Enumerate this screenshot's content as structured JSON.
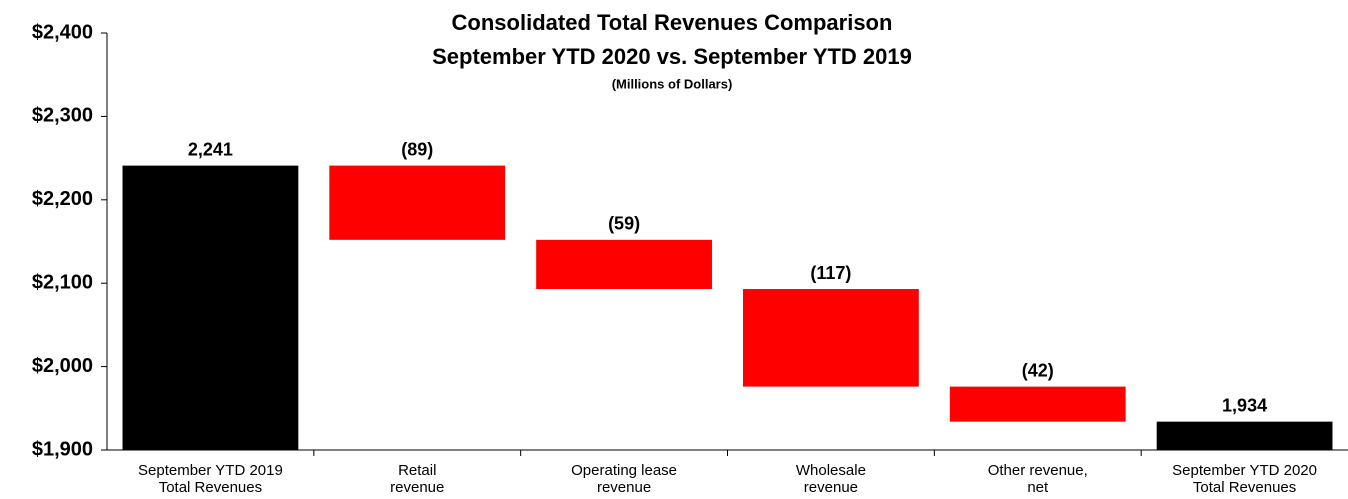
{
  "chart_data": {
    "type": "waterfall",
    "title": "Consolidated Total Revenues Comparison",
    "subtitle": "September YTD 2020 vs. September YTD 2019",
    "note": "(Millions of Dollars)",
    "categories": [
      "September YTD 2019\nTotal Revenues",
      "Retail\nrevenue",
      "Operating lease\nrevenue",
      "Wholesale\nrevenue",
      "Other revenue,\nnet",
      "September YTD 2020\nTotal Revenues"
    ],
    "values": [
      2241,
      -89,
      -59,
      -117,
      -42,
      1934
    ],
    "value_labels": [
      "2,241",
      "(89)",
      "(59)",
      "(117)",
      "(42)",
      "1,934"
    ],
    "total_color": "#000000",
    "delta_color": "#ff0000",
    "ylim": [
      1900,
      2400
    ],
    "yticks": [
      {
        "value": 1900,
        "label": "$1,900"
      },
      {
        "value": 2000,
        "label": "$2,000"
      },
      {
        "value": 2100,
        "label": "$2,100"
      },
      {
        "value": 2200,
        "label": "$2,200"
      },
      {
        "value": 2300,
        "label": "$2,300"
      },
      {
        "value": 2400,
        "label": "$2,400"
      }
    ]
  }
}
